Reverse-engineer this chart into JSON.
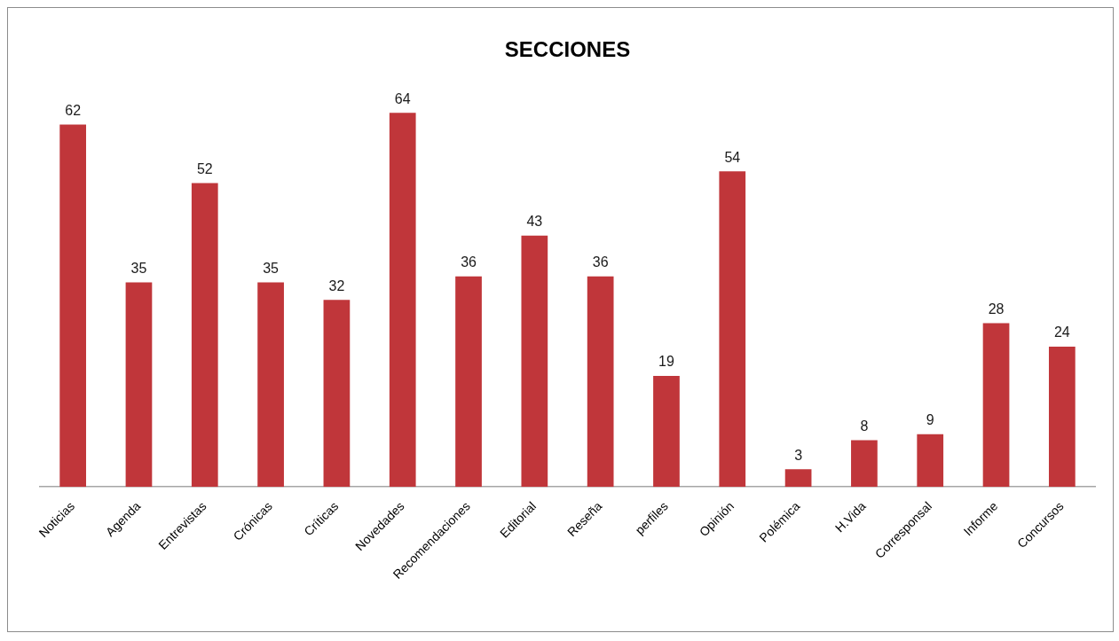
{
  "chart_data": {
    "type": "bar",
    "title": "SECCIONES",
    "categories": [
      "Noticias",
      "Agenda",
      "Entrevistas",
      "Crónicas",
      "Críticas",
      "Novedades",
      "Recomendaciones",
      "Editorial",
      "Reseña",
      "perfiles",
      "Opinión",
      "Polémica",
      "H.Vida",
      "Corresponsal",
      "Informe",
      "Concursos"
    ],
    "values": [
      62,
      35,
      52,
      35,
      32,
      64,
      36,
      43,
      36,
      19,
      54,
      3,
      8,
      9,
      28,
      24
    ],
    "color": "#c0363a",
    "data_labels": true,
    "grid": false,
    "legend": false
  }
}
